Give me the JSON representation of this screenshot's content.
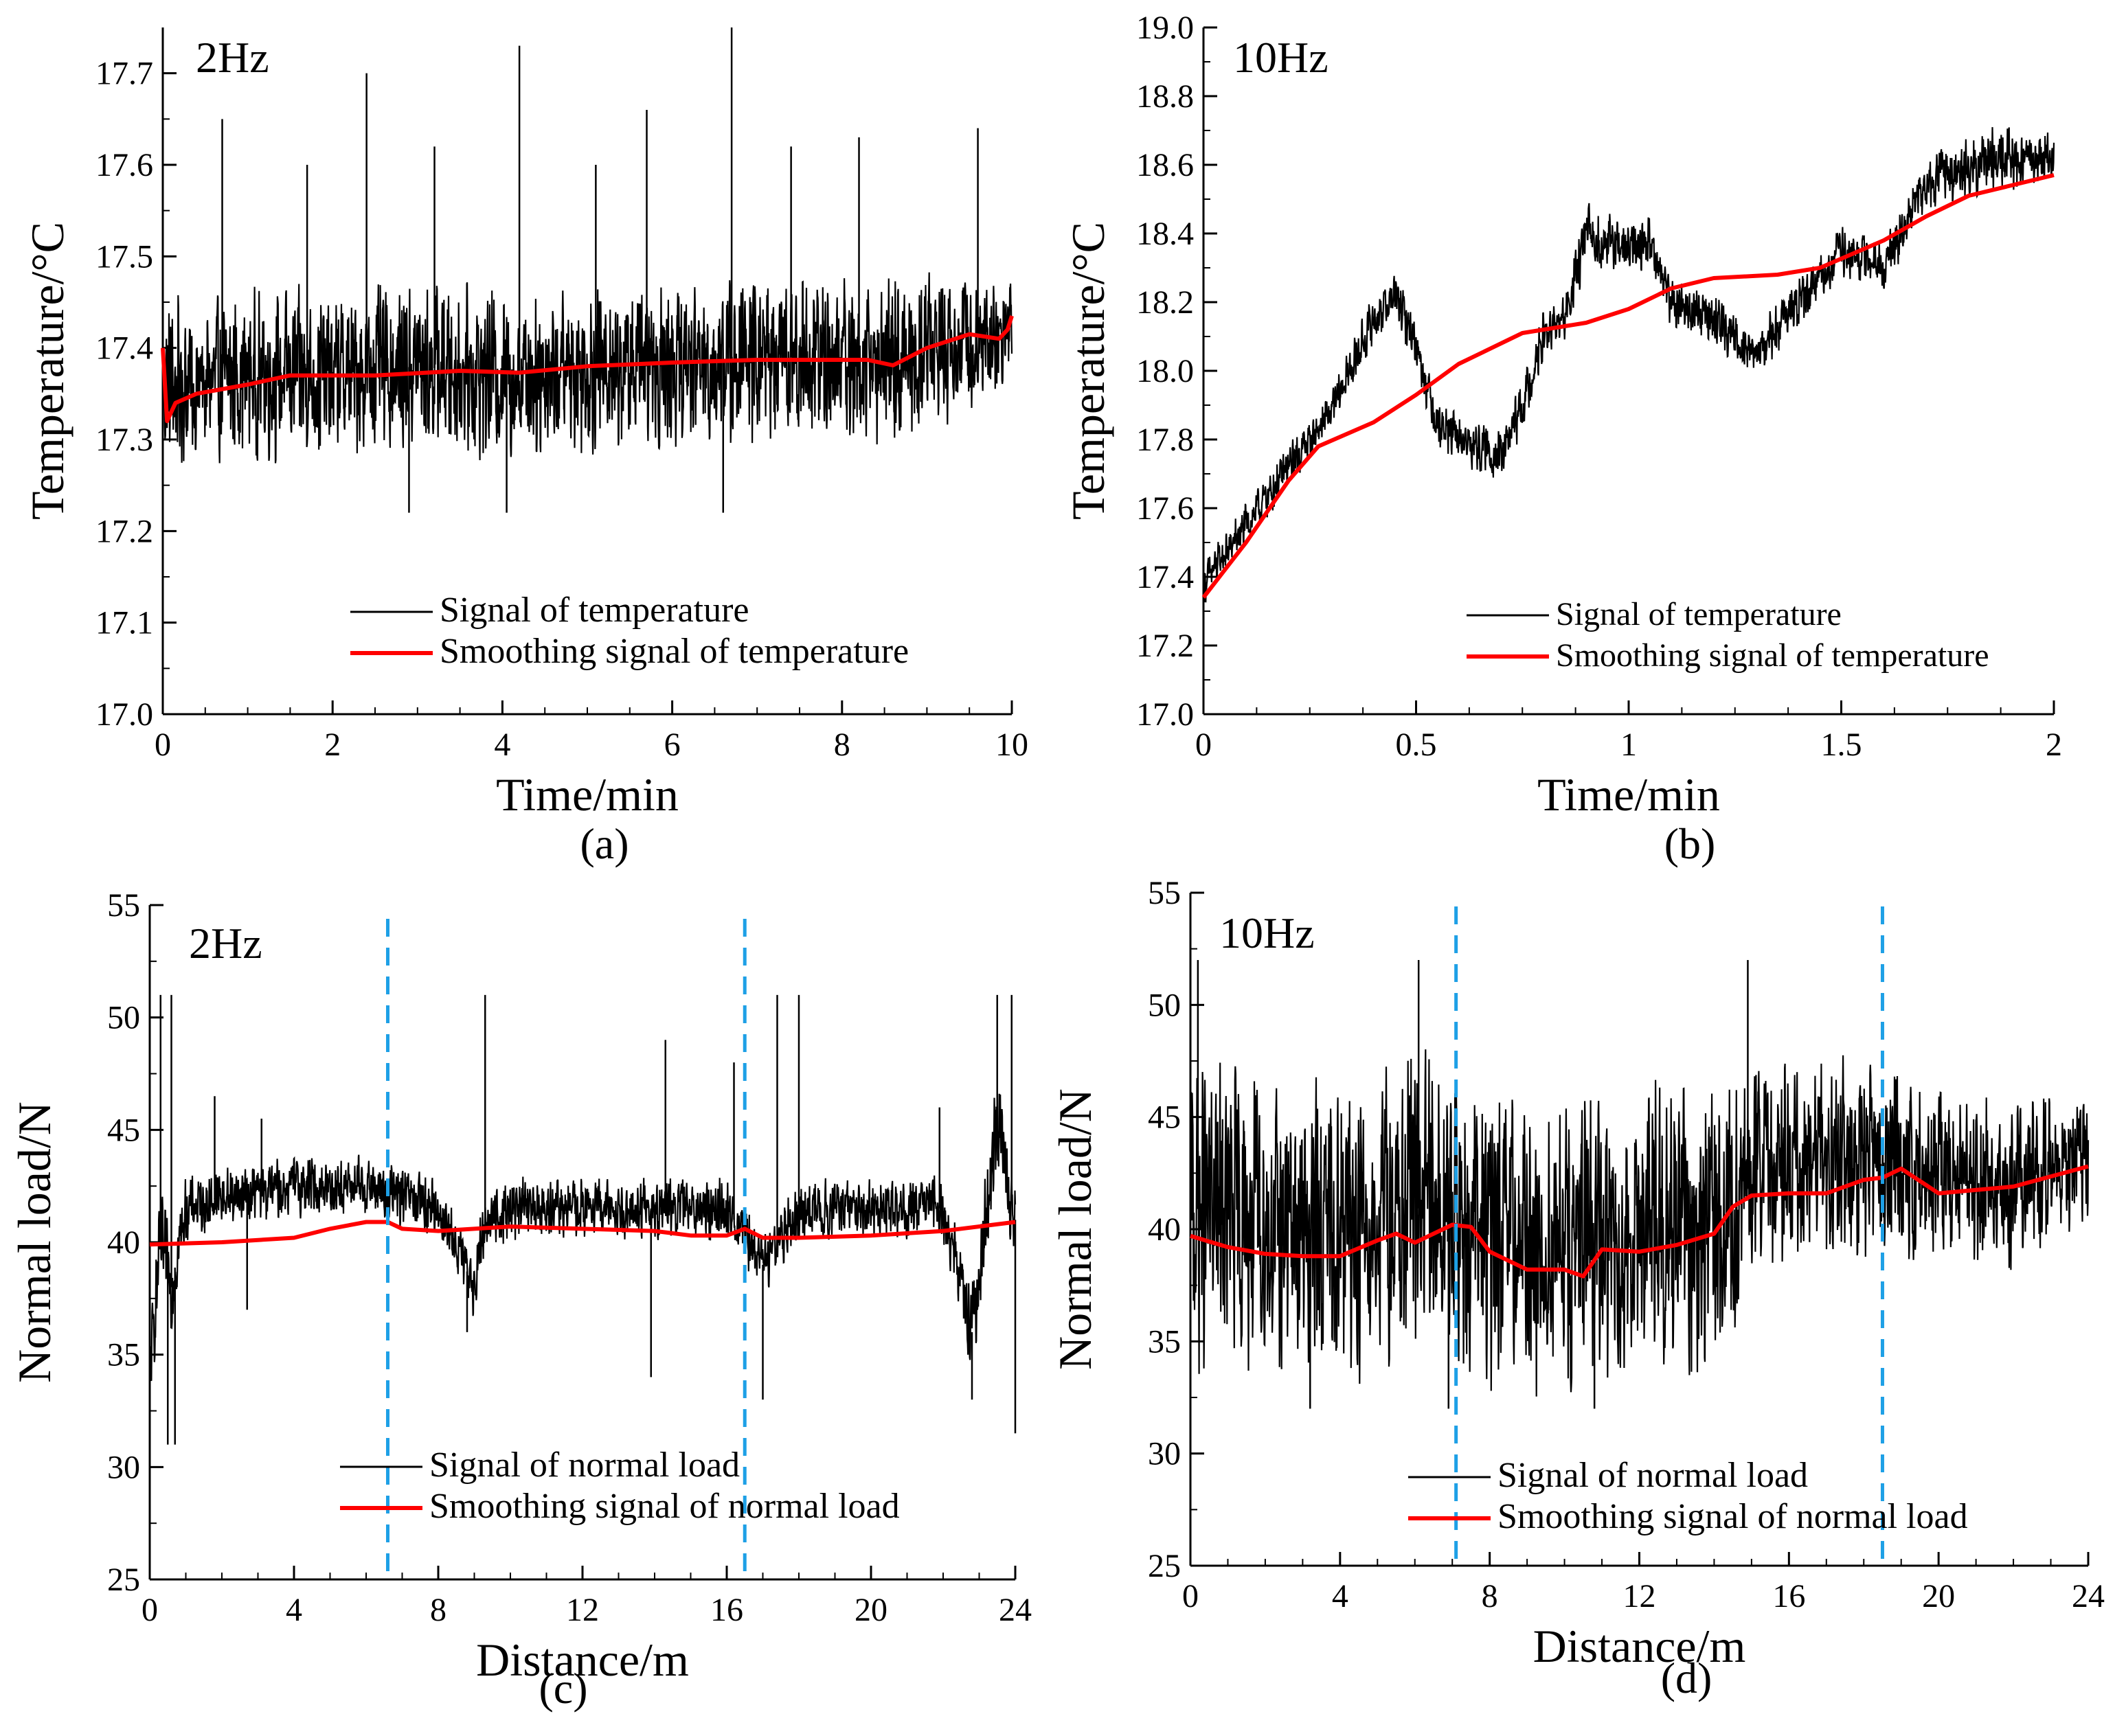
{
  "chart_data": [
    {
      "panel": "(a)",
      "type": "line",
      "annotation": "2Hz",
      "xlabel": "Time/min",
      "ylabel": "Temperature/°C",
      "xlim": [
        0,
        10
      ],
      "ylim": [
        17.0,
        17.75
      ],
      "xticks": [
        0,
        2,
        4,
        6,
        8,
        10
      ],
      "xtick_labels": [
        "0",
        "2",
        "4",
        "6",
        "8",
        "10"
      ],
      "yticks": [
        17.0,
        17.1,
        17.2,
        17.3,
        17.4,
        17.5,
        17.6,
        17.7
      ],
      "ytick_labels": [
        "17.0",
        "17.1",
        "17.2",
        "17.3",
        "17.4",
        "17.5",
        "17.6",
        "17.7"
      ],
      "legend_position": "bottom-right",
      "colors": {
        "raw": "#000000",
        "smooth": "#ff0000"
      },
      "series": [
        {
          "name": "Signal of temperature",
          "kind": "noisy",
          "x": [
            0,
            0.5,
            1,
            2,
            3,
            4,
            5,
            6,
            7,
            8,
            8.6,
            9,
            9.5,
            10
          ],
          "center": [
            17.36,
            17.36,
            17.37,
            17.37,
            17.38,
            17.37,
            17.38,
            17.38,
            17.39,
            17.39,
            17.38,
            17.4,
            17.41,
            17.42
          ],
          "amplitude": [
            0.1,
            0.1,
            0.1,
            0.1,
            0.1,
            0.1,
            0.1,
            0.1,
            0.1,
            0.1,
            0.1,
            0.1,
            0.08,
            0.08
          ],
          "spikes": [
            [
              0.7,
              17.65
            ],
            [
              1.7,
              17.6
            ],
            [
              2.4,
              17.7
            ],
            [
              3.2,
              17.62
            ],
            [
              4.2,
              17.73
            ],
            [
              5.1,
              17.6
            ],
            [
              5.7,
              17.66
            ],
            [
              6.7,
              17.75
            ],
            [
              7.4,
              17.62
            ],
            [
              8.2,
              17.63
            ],
            [
              9.6,
              17.64
            ],
            [
              2.9,
              17.22
            ],
            [
              4.05,
              17.22
            ],
            [
              6.6,
              17.22
            ]
          ]
        },
        {
          "name": "Smoothing signal of temperature",
          "kind": "smooth",
          "x": [
            0,
            0.05,
            0.15,
            0.4,
            1,
            1.5,
            2.5,
            3.5,
            4.2,
            5,
            6,
            7,
            8,
            8.3,
            8.6,
            9,
            9.5,
            9.85,
            9.95,
            10
          ],
          "y": [
            17.4,
            17.32,
            17.34,
            17.35,
            17.36,
            17.37,
            17.37,
            17.375,
            17.373,
            17.38,
            17.384,
            17.387,
            17.387,
            17.387,
            17.381,
            17.4,
            17.415,
            17.41,
            17.42,
            17.435
          ]
        }
      ]
    },
    {
      "panel": "(b)",
      "type": "line",
      "annotation": "10Hz",
      "xlabel": "Time/min",
      "ylabel": "Temperature/°C",
      "xlim": [
        0,
        2
      ],
      "ylim": [
        17.0,
        19.0
      ],
      "xticks": [
        0,
        0.5,
        1,
        1.5,
        2
      ],
      "xtick_labels": [
        "0",
        "0.5",
        "1",
        "1.5",
        "2"
      ],
      "yticks": [
        17.0,
        17.2,
        17.4,
        17.6,
        17.8,
        18.0,
        18.2,
        18.4,
        18.6,
        18.8,
        19.0
      ],
      "ytick_labels": [
        "17.0",
        "17.2",
        "17.4",
        "17.6",
        "17.8",
        "18.0",
        "18.2",
        "18.4",
        "18.6",
        "18.8",
        "19.0"
      ],
      "legend_position": "bottom-right",
      "colors": {
        "raw": "#000000",
        "smooth": "#ff0000"
      },
      "series": [
        {
          "name": "Signal of temperature",
          "kind": "noisy",
          "x": [
            0,
            0.1,
            0.2,
            0.3,
            0.4,
            0.45,
            0.5,
            0.55,
            0.6,
            0.7,
            0.75,
            0.8,
            0.85,
            0.9,
            1.0,
            1.05,
            1.1,
            1.2,
            1.3,
            1.4,
            1.5,
            1.6,
            1.7,
            1.8,
            1.9,
            2.0
          ],
          "center": [
            17.38,
            17.55,
            17.72,
            17.88,
            18.15,
            18.22,
            18.08,
            17.85,
            17.8,
            17.75,
            17.9,
            18.1,
            18.15,
            18.4,
            18.35,
            18.38,
            18.2,
            18.15,
            18.05,
            18.2,
            18.35,
            18.3,
            18.55,
            18.6,
            18.62,
            18.62
          ],
          "amplitude": [
            0.07,
            0.07,
            0.07,
            0.07,
            0.08,
            0.08,
            0.08,
            0.08,
            0.08,
            0.08,
            0.08,
            0.08,
            0.08,
            0.1,
            0.08,
            0.08,
            0.08,
            0.08,
            0.08,
            0.08,
            0.08,
            0.08,
            0.08,
            0.1,
            0.1,
            0.08
          ],
          "spikes": []
        },
        {
          "name": "Smoothing signal of temperature",
          "kind": "smooth",
          "x": [
            0,
            0.1,
            0.2,
            0.27,
            0.4,
            0.5,
            0.6,
            0.75,
            0.9,
            1.0,
            1.1,
            1.2,
            1.35,
            1.45,
            1.6,
            1.7,
            1.8,
            1.9,
            2.0
          ],
          "y": [
            17.34,
            17.5,
            17.68,
            17.78,
            17.85,
            17.93,
            18.02,
            18.11,
            18.14,
            18.18,
            18.24,
            18.27,
            18.28,
            18.3,
            18.38,
            18.45,
            18.51,
            18.54,
            18.57
          ]
        }
      ]
    },
    {
      "panel": "(c)",
      "type": "line",
      "annotation": "2Hz",
      "xlabel": "Distance/m",
      "ylabel": "Normal load/N",
      "xlim": [
        0,
        24
      ],
      "ylim": [
        25,
        55
      ],
      "xticks": [
        0,
        4,
        8,
        12,
        16,
        20,
        24
      ],
      "xtick_labels": [
        "0",
        "4",
        "8",
        "12",
        "16",
        "20",
        "24"
      ],
      "yticks": [
        25,
        30,
        35,
        40,
        45,
        50,
        55
      ],
      "ytick_labels": [
        "25",
        "30",
        "35",
        "40",
        "45",
        "50",
        "55"
      ],
      "legend_position": "bottom-right",
      "vlines": [
        6.6,
        16.5
      ],
      "colors": {
        "raw": "#000000",
        "smooth": "#ff0000",
        "vline": "#1ea0e6"
      },
      "series": [
        {
          "name": "Signal of normal load",
          "kind": "noisy",
          "x": [
            0,
            0.3,
            0.6,
            1,
            2,
            4,
            6,
            8,
            9,
            9.3,
            10,
            12,
            14,
            16,
            17,
            18,
            20,
            22,
            22.8,
            23.5,
            24
          ],
          "center": [
            34,
            40,
            38,
            41.5,
            42,
            42.5,
            42.5,
            41.5,
            38,
            41,
            41.5,
            41.5,
            41.5,
            41.5,
            39,
            41.5,
            41.5,
            41.5,
            36,
            45,
            41
          ],
          "amplitude": [
            2,
            2.5,
            2.5,
            1.5,
            1.5,
            1.5,
            1.5,
            1.5,
            1.5,
            1.5,
            1.5,
            1.5,
            1.5,
            1.5,
            1.5,
            1.5,
            1.5,
            1.5,
            2,
            3,
            2
          ],
          "spikes": [
            [
              0.3,
              51
            ],
            [
              0.5,
              31
            ],
            [
              0.6,
              51
            ],
            [
              0.7,
              31
            ],
            [
              1.8,
              46.5
            ],
            [
              2.7,
              37
            ],
            [
              3.1,
              45.5
            ],
            [
              8.8,
              36
            ],
            [
              9.3,
              51
            ],
            [
              13.9,
              34
            ],
            [
              14.3,
              49
            ],
            [
              16.2,
              48
            ],
            [
              17.0,
              33
            ],
            [
              17.4,
              51
            ],
            [
              18.0,
              51
            ],
            [
              21.9,
              46
            ],
            [
              22.8,
              33
            ],
            [
              23.5,
              51
            ],
            [
              23.9,
              51
            ],
            [
              24,
              31.5
            ]
          ]
        },
        {
          "name": "Smoothing signal of normal load",
          "kind": "smooth",
          "x": [
            0,
            2,
            4,
            5,
            6,
            6.6,
            7,
            8,
            10,
            12,
            14,
            15,
            16,
            16.5,
            17,
            18,
            20,
            22,
            24
          ],
          "y": [
            39.9,
            40,
            40.2,
            40.6,
            40.9,
            40.9,
            40.6,
            40.5,
            40.7,
            40.6,
            40.5,
            40.3,
            40.3,
            40.6,
            40.2,
            40.2,
            40.3,
            40.5,
            40.9
          ]
        }
      ]
    },
    {
      "panel": "(d)",
      "type": "line",
      "annotation": "10Hz",
      "xlabel": "Distance/m",
      "ylabel": "Normal load/N",
      "xlim": [
        0,
        24
      ],
      "ylim": [
        25,
        55
      ],
      "xticks": [
        0,
        4,
        8,
        12,
        16,
        20,
        24
      ],
      "xtick_labels": [
        "0",
        "4",
        "8",
        "12",
        "16",
        "20",
        "24"
      ],
      "yticks": [
        25,
        30,
        35,
        40,
        45,
        50,
        55
      ],
      "ytick_labels": [
        "25",
        "30",
        "35",
        "40",
        "45",
        "50",
        "55"
      ],
      "legend_position": "bottom-right",
      "vlines": [
        7.1,
        18.5
      ],
      "colors": {
        "raw": "#000000",
        "smooth": "#ff0000",
        "vline": "#1ea0e6"
      },
      "series": [
        {
          "name": "Signal of normal load",
          "kind": "noisy",
          "x": [
            0,
            2,
            4,
            6,
            8,
            10,
            12,
            14,
            15,
            16,
            18,
            20,
            22,
            24
          ],
          "center": [
            41,
            40,
            40,
            41,
            39.5,
            39,
            40,
            40,
            42,
            43,
            43,
            42.5,
            42,
            43
          ],
          "amplitude": [
            8,
            7,
            7,
            8,
            7,
            7,
            7,
            7,
            6,
            5,
            5,
            4,
            4,
            3
          ],
          "spikes": [
            [
              0.2,
              52
            ],
            [
              6.1,
              52
            ],
            [
              14.9,
              52
            ],
            [
              10.8,
              32
            ],
            [
              6.9,
              32
            ],
            [
              3.2,
              32
            ]
          ]
        },
        {
          "name": "Smoothing signal of normal load",
          "kind": "smooth",
          "x": [
            0,
            1,
            2,
            3,
            4,
            5,
            5.5,
            6,
            7,
            7.5,
            8,
            9,
            10,
            10.5,
            11,
            12,
            13,
            14,
            14.5,
            15,
            16,
            17,
            18,
            18.5,
            19,
            20,
            22,
            24
          ],
          "y": [
            39.7,
            39.2,
            38.9,
            38.8,
            38.8,
            39.5,
            39.8,
            39.4,
            40.2,
            40.1,
            39,
            38.2,
            38.2,
            37.9,
            39.1,
            39,
            39.3,
            39.8,
            41,
            41.5,
            41.6,
            41.6,
            42.2,
            42.3,
            42.7,
            41.6,
            41.9,
            42.8
          ]
        }
      ]
    }
  ],
  "panel_captions": [
    "(a)",
    "(b)",
    "(c)",
    "(d)"
  ]
}
